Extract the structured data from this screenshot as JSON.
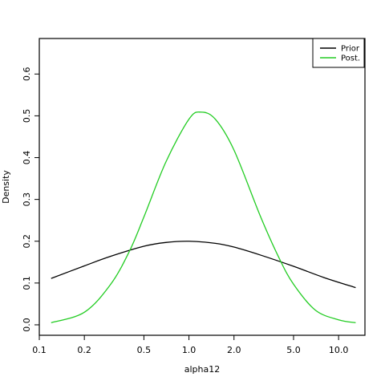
{
  "chart_data": {
    "type": "line",
    "title": "",
    "xlabel": "alpha12",
    "ylabel": "Density",
    "x_scale": "log",
    "xlim": [
      0.1,
      15
    ],
    "ylim": [
      -0.025,
      0.685
    ],
    "x_ticks": [
      0.1,
      0.2,
      0.5,
      1.0,
      2.0,
      5.0,
      10.0
    ],
    "x_tick_labels": [
      "0.1",
      "0.2",
      "0.5",
      "1.0",
      "2.0",
      "5.0",
      "10.0"
    ],
    "y_ticks": [
      0.0,
      0.1,
      0.2,
      0.3,
      0.4,
      0.5,
      0.6
    ],
    "y_tick_labels": [
      "0.0",
      "0.1",
      "0.2",
      "0.3",
      "0.4",
      "0.5",
      "0.6"
    ],
    "grid": false,
    "legend_position": "top-right",
    "series": [
      {
        "name": "Prior",
        "color": "#000000",
        "x": [
          0.12,
          0.2,
          0.3,
          0.5,
          0.7,
          1.0,
          1.5,
          2.0,
          3.0,
          5.0,
          8.0,
          13.0
        ],
        "y": [
          0.111,
          0.141,
          0.164,
          0.188,
          0.197,
          0.2,
          0.195,
          0.186,
          0.167,
          0.14,
          0.113,
          0.089
        ]
      },
      {
        "name": "Post.",
        "color": "#22cc22",
        "x": [
          0.12,
          0.2,
          0.3,
          0.4,
          0.5,
          0.7,
          1.0,
          1.2,
          1.5,
          2.0,
          3.0,
          4.0,
          5.0,
          7.0,
          10.0,
          13.0
        ],
        "y": [
          0.005,
          0.03,
          0.097,
          0.176,
          0.258,
          0.389,
          0.492,
          0.509,
          0.492,
          0.418,
          0.26,
          0.16,
          0.097,
          0.035,
          0.012,
          0.005
        ]
      }
    ]
  }
}
